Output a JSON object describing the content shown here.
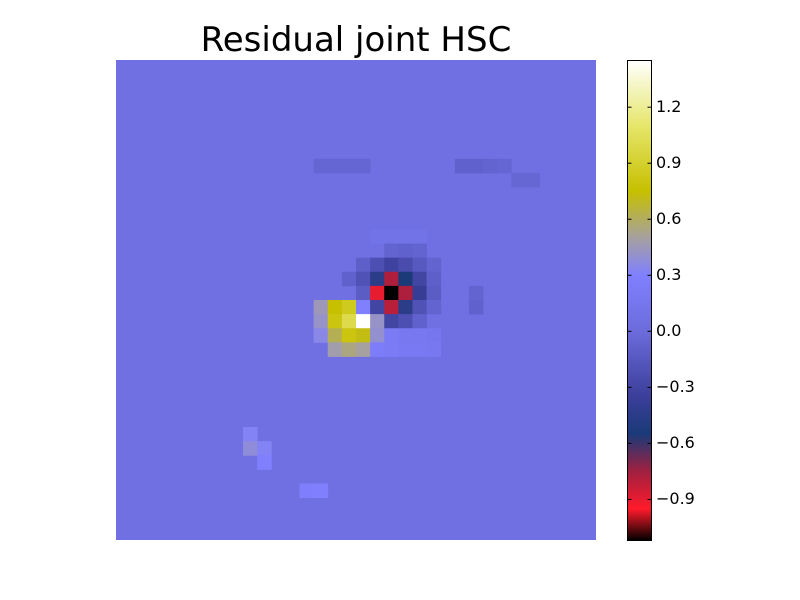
{
  "chart_data": {
    "type": "heatmap",
    "title": "Residual joint HSC",
    "colorbar": {
      "vmin": -1.12,
      "vmax": 1.45,
      "ticks": [
        {
          "value": 1.2,
          "label": "1.2"
        },
        {
          "value": 0.9,
          "label": "0.9"
        },
        {
          "value": 0.6,
          "label": "0.6"
        },
        {
          "value": 0.3,
          "label": "0.3"
        },
        {
          "value": 0.0,
          "label": "0.0"
        },
        {
          "value": -0.3,
          "label": "−0.3"
        },
        {
          "value": -0.6,
          "label": "−0.6"
        },
        {
          "value": -0.9,
          "label": "−0.9"
        }
      ],
      "colormap_stops": [
        {
          "value": -1.12,
          "color": "#000000"
        },
        {
          "value": -0.95,
          "color": "#ff1a2a"
        },
        {
          "value": -0.75,
          "color": "#a02040"
        },
        {
          "value": -0.55,
          "color": "#1a3a78"
        },
        {
          "value": -0.35,
          "color": "#3c3e9a"
        },
        {
          "value": 0.0,
          "color": "#6c6cdc"
        },
        {
          "value": 0.3,
          "color": "#8080ff"
        },
        {
          "value": 0.5,
          "color": "#a6a0a0"
        },
        {
          "value": 0.75,
          "color": "#c6c000"
        },
        {
          "value": 1.1,
          "color": "#e6e66a"
        },
        {
          "value": 1.45,
          "color": "#ffffff"
        }
      ]
    },
    "grid": {
      "rows": 34,
      "cols": 34,
      "background_value": 0.06
    },
    "cells": [
      {
        "row": 7,
        "col": 14,
        "value": -0.05
      },
      {
        "row": 7,
        "col": 15,
        "value": -0.05
      },
      {
        "row": 7,
        "col": 16,
        "value": -0.05
      },
      {
        "row": 7,
        "col": 17,
        "value": -0.05
      },
      {
        "row": 7,
        "col": 24,
        "value": -0.08
      },
      {
        "row": 7,
        "col": 25,
        "value": -0.08
      },
      {
        "row": 7,
        "col": 26,
        "value": -0.06
      },
      {
        "row": 7,
        "col": 27,
        "value": -0.05
      },
      {
        "row": 8,
        "col": 28,
        "value": -0.04
      },
      {
        "row": 8,
        "col": 29,
        "value": -0.04
      },
      {
        "row": 12,
        "col": 18,
        "value": 0.1
      },
      {
        "row": 12,
        "col": 19,
        "value": 0.1
      },
      {
        "row": 12,
        "col": 20,
        "value": 0.1
      },
      {
        "row": 12,
        "col": 21,
        "value": 0.1
      },
      {
        "row": 13,
        "col": 19,
        "value": -0.06
      },
      {
        "row": 13,
        "col": 20,
        "value": -0.08
      },
      {
        "row": 13,
        "col": 21,
        "value": -0.06
      },
      {
        "row": 14,
        "col": 17,
        "value": -0.1
      },
      {
        "row": 14,
        "col": 18,
        "value": -0.22
      },
      {
        "row": 14,
        "col": 19,
        "value": -0.32
      },
      {
        "row": 14,
        "col": 20,
        "value": -0.25
      },
      {
        "row": 14,
        "col": 21,
        "value": -0.15
      },
      {
        "row": 14,
        "col": 22,
        "value": -0.06
      },
      {
        "row": 15,
        "col": 16,
        "value": -0.08
      },
      {
        "row": 15,
        "col": 17,
        "value": -0.2
      },
      {
        "row": 15,
        "col": 18,
        "value": -0.45
      },
      {
        "row": 15,
        "col": 19,
        "value": -0.78
      },
      {
        "row": 15,
        "col": 20,
        "value": -0.55
      },
      {
        "row": 15,
        "col": 21,
        "value": -0.3
      },
      {
        "row": 15,
        "col": 22,
        "value": -0.1
      },
      {
        "row": 16,
        "col": 17,
        "value": -0.12
      },
      {
        "row": 16,
        "col": 18,
        "value": -0.9
      },
      {
        "row": 16,
        "col": 19,
        "value": -1.12
      },
      {
        "row": 16,
        "col": 20,
        "value": -0.78
      },
      {
        "row": 16,
        "col": 21,
        "value": -0.38
      },
      {
        "row": 16,
        "col": 22,
        "value": -0.12
      },
      {
        "row": 16,
        "col": 25,
        "value": -0.06
      },
      {
        "row": 17,
        "col": 14,
        "value": 0.45
      },
      {
        "row": 17,
        "col": 15,
        "value": 0.75
      },
      {
        "row": 17,
        "col": 16,
        "value": 0.85
      },
      {
        "row": 17,
        "col": 17,
        "value": 0.3
      },
      {
        "row": 17,
        "col": 18,
        "value": -0.3
      },
      {
        "row": 17,
        "col": 19,
        "value": -0.8
      },
      {
        "row": 17,
        "col": 20,
        "value": -0.45
      },
      {
        "row": 17,
        "col": 21,
        "value": -0.2
      },
      {
        "row": 17,
        "col": 22,
        "value": -0.06
      },
      {
        "row": 17,
        "col": 25,
        "value": -0.08
      },
      {
        "row": 18,
        "col": 14,
        "value": 0.42
      },
      {
        "row": 18,
        "col": 15,
        "value": 0.8
      },
      {
        "row": 18,
        "col": 16,
        "value": 1.0
      },
      {
        "row": 18,
        "col": 17,
        "value": 1.45
      },
      {
        "row": 18,
        "col": 18,
        "value": 0.42
      },
      {
        "row": 18,
        "col": 19,
        "value": -0.3
      },
      {
        "row": 18,
        "col": 20,
        "value": -0.22
      },
      {
        "row": 18,
        "col": 21,
        "value": -0.08
      },
      {
        "row": 19,
        "col": 14,
        "value": 0.35
      },
      {
        "row": 19,
        "col": 15,
        "value": 0.62
      },
      {
        "row": 19,
        "col": 16,
        "value": 0.8
      },
      {
        "row": 19,
        "col": 17,
        "value": 0.72
      },
      {
        "row": 19,
        "col": 18,
        "value": 0.4
      },
      {
        "row": 19,
        "col": 19,
        "value": 0.22
      },
      {
        "row": 19,
        "col": 20,
        "value": 0.18
      },
      {
        "row": 19,
        "col": 21,
        "value": 0.18
      },
      {
        "row": 19,
        "col": 22,
        "value": 0.15
      },
      {
        "row": 20,
        "col": 15,
        "value": 0.48
      },
      {
        "row": 20,
        "col": 16,
        "value": 0.55
      },
      {
        "row": 20,
        "col": 17,
        "value": 0.5
      },
      {
        "row": 20,
        "col": 18,
        "value": 0.25
      },
      {
        "row": 20,
        "col": 19,
        "value": 0.22
      },
      {
        "row": 20,
        "col": 20,
        "value": 0.2
      },
      {
        "row": 20,
        "col": 21,
        "value": 0.2
      },
      {
        "row": 20,
        "col": 22,
        "value": 0.18
      },
      {
        "row": 26,
        "col": 9,
        "value": 0.32
      },
      {
        "row": 27,
        "col": 9,
        "value": 0.38
      },
      {
        "row": 27,
        "col": 10,
        "value": 0.32
      },
      {
        "row": 28,
        "col": 10,
        "value": 0.3
      },
      {
        "row": 30,
        "col": 13,
        "value": 0.28
      },
      {
        "row": 30,
        "col": 14,
        "value": 0.3
      }
    ]
  }
}
